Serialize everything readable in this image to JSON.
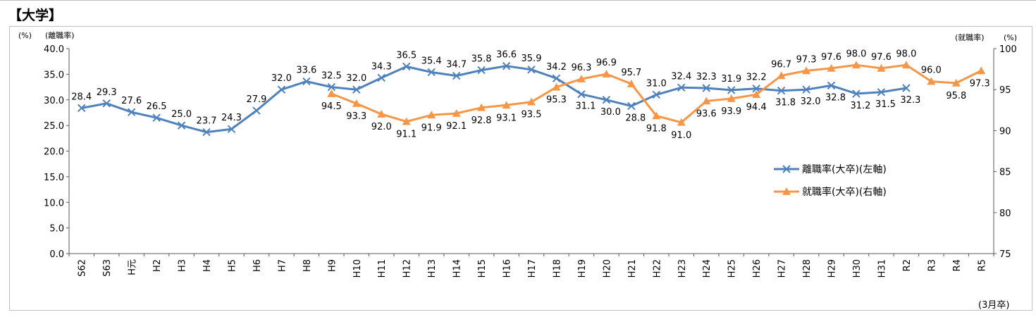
{
  "heading": "【大学】",
  "chart_data": {
    "type": "line",
    "left_unit": "(%)",
    "left_axis_label": "(離職率)",
    "right_axis_label": "(就職率)",
    "right_unit": "(%)",
    "footnote": "(3月卒)",
    "left_ylim": [
      0,
      40
    ],
    "left_ticks": [
      "0.0",
      "5.0",
      "10.0",
      "15.0",
      "20.0",
      "25.0",
      "30.0",
      "35.0",
      "40.0"
    ],
    "right_ylim": [
      75,
      100
    ],
    "right_ticks": [
      "75",
      "80",
      "85",
      "90",
      "95",
      "100"
    ],
    "categories": [
      "S62",
      "S63",
      "H元",
      "H2",
      "H3",
      "H4",
      "H5",
      "H6",
      "H7",
      "H8",
      "H9",
      "H10",
      "H11",
      "H12",
      "H13",
      "H14",
      "H15",
      "H16",
      "H17",
      "H18",
      "H19",
      "H20",
      "H21",
      "H22",
      "H23",
      "H24",
      "H25",
      "H26",
      "H27",
      "H28",
      "H29",
      "H30",
      "H31",
      "R2",
      "R3",
      "R4",
      "R5"
    ],
    "series": [
      {
        "name": "離職率(大卒)(左軸)",
        "axis": "left",
        "color": "#4f81bd",
        "marker": "x",
        "values": [
          28.4,
          29.3,
          27.6,
          26.5,
          25.0,
          23.7,
          24.3,
          27.9,
          32.0,
          33.6,
          32.5,
          32.0,
          34.3,
          36.5,
          35.4,
          34.7,
          35.8,
          36.6,
          35.9,
          34.2,
          31.1,
          30.0,
          28.8,
          31.0,
          32.4,
          32.3,
          31.9,
          32.2,
          31.8,
          32.0,
          32.8,
          31.2,
          31.5,
          32.3,
          null,
          null,
          null
        ],
        "labels": [
          "28.4",
          "29.3",
          "27.6",
          "26.5",
          "25.0",
          "23.7",
          "24.3",
          "27.9",
          "32.0",
          "33.6",
          "32.5",
          "32.0",
          "34.3",
          "36.5",
          "35.4",
          "34.7",
          "35.8",
          "36.6",
          "35.9",
          "34.2",
          "31.1",
          "30.0",
          "28.8",
          "31.0",
          "32.4",
          "32.3",
          "31.9",
          "32.2",
          "31.8",
          "32.0",
          "32.8",
          "31.2",
          "31.5",
          "32.3",
          null,
          null,
          null
        ]
      },
      {
        "name": "就職率(大卒)(右軸)",
        "axis": "right",
        "color": "#f79646",
        "marker": "triangle",
        "values": [
          null,
          null,
          null,
          null,
          null,
          null,
          null,
          null,
          null,
          null,
          94.5,
          93.3,
          92.0,
          91.1,
          91.9,
          92.1,
          92.8,
          93.1,
          93.5,
          95.3,
          96.3,
          96.9,
          95.7,
          91.8,
          91.0,
          93.6,
          93.9,
          94.4,
          96.7,
          97.3,
          97.6,
          98.0,
          97.6,
          98.0,
          96.0,
          95.8,
          97.3
        ],
        "labels": [
          null,
          null,
          null,
          null,
          null,
          null,
          null,
          null,
          null,
          null,
          "94.5",
          "93.3",
          "92.0",
          "91.1",
          "91.9",
          "92.1",
          "92.8",
          "93.1",
          "93.5",
          "95.3",
          "96.3",
          "96.9",
          "95.7",
          "91.8",
          "91.0",
          "93.6",
          "93.9",
          "94.4",
          "96.7",
          "97.3",
          "97.6",
          "98.0",
          "97.6",
          "98.0",
          "96.0",
          "95.8",
          "97.3"
        ]
      }
    ],
    "legend_position": "right"
  }
}
